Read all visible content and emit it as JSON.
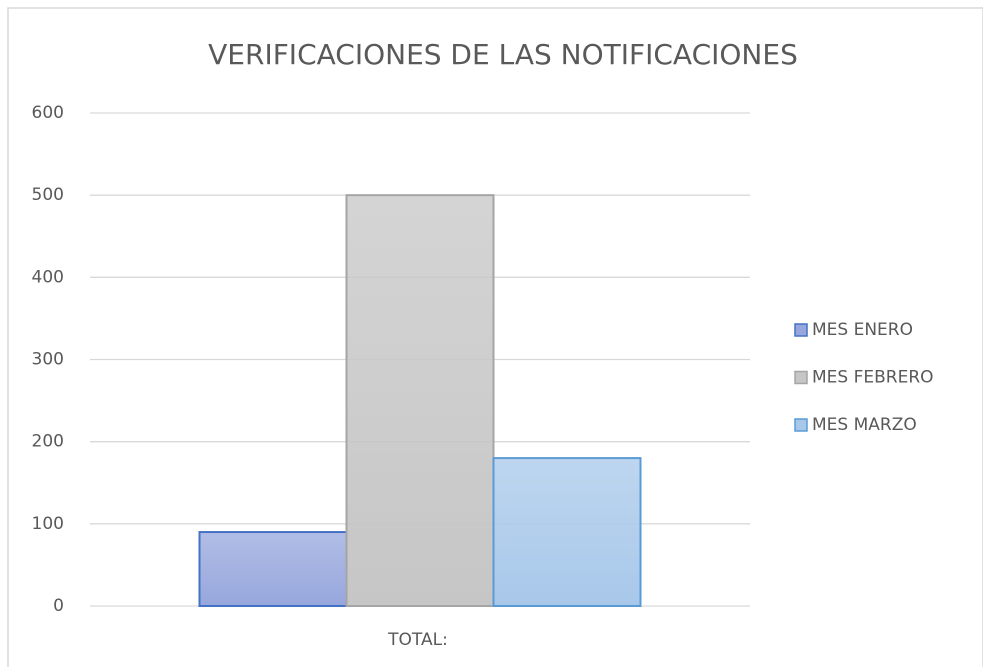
{
  "chart_data": {
    "type": "bar",
    "title": "VERIFICACIONES DE LAS NOTIFICACIONES",
    "categories": [
      "TOTAL:"
    ],
    "series": [
      {
        "name": "MES ENERO",
        "color": "#97a7dd",
        "edge_color": "#4472c4",
        "values": [
          90
        ]
      },
      {
        "name": "MES FEBRERO",
        "color": "#c6c6c6",
        "edge_color": "#a5a5a5",
        "values": [
          500
        ]
      },
      {
        "name": "MES MARZO",
        "color": "#a8c8ea",
        "edge_color": "#5b9bd5",
        "values": [
          180
        ]
      }
    ],
    "ylim": [
      0,
      600
    ],
    "yticks": [
      0,
      100,
      200,
      300,
      400,
      500,
      600
    ],
    "grid": true,
    "legend": "right"
  }
}
